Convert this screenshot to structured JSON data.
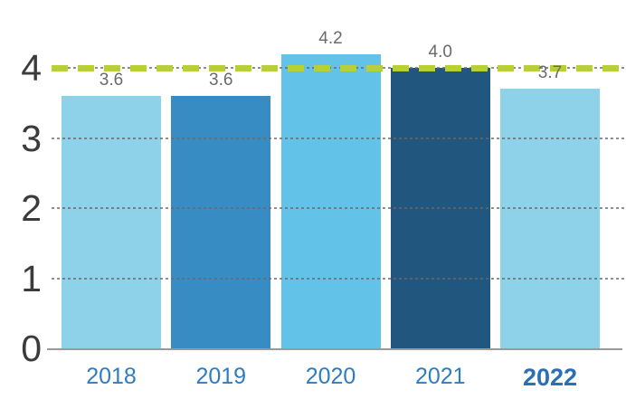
{
  "chart_data": {
    "type": "bar",
    "title": "",
    "xlabel": "",
    "ylabel": "",
    "categories": [
      "2018",
      "2019",
      "2020",
      "2021",
      "2022"
    ],
    "values": [
      3.6,
      3.6,
      4.2,
      4.0,
      3.7
    ],
    "value_labels": [
      "3.6",
      "3.6",
      "4.2",
      "4.0",
      "3.7"
    ],
    "bar_colors": [
      "#8ed2e9",
      "#388cc4",
      "#63c2e7",
      "#21567e",
      "#8ed2e9"
    ],
    "highlighted_category": "2022",
    "reference_line": {
      "value": 4.0,
      "style": "dashed",
      "color": "#b8d033"
    },
    "y_ticks": [
      0,
      1,
      2,
      3,
      4
    ],
    "ylim": [
      0,
      4.95
    ],
    "grid": "horizontal-dashed",
    "legend": "none"
  },
  "colors": {
    "value_label": "#6a6a6a",
    "y_tick_label": "#3b3b3b",
    "x_tick_label": "#2e7cc2",
    "x_tick_label_highlight": "#2d6fb4",
    "gridline": "#696969",
    "axis_line": "#9a9a9a",
    "background": "#ffffff"
  }
}
